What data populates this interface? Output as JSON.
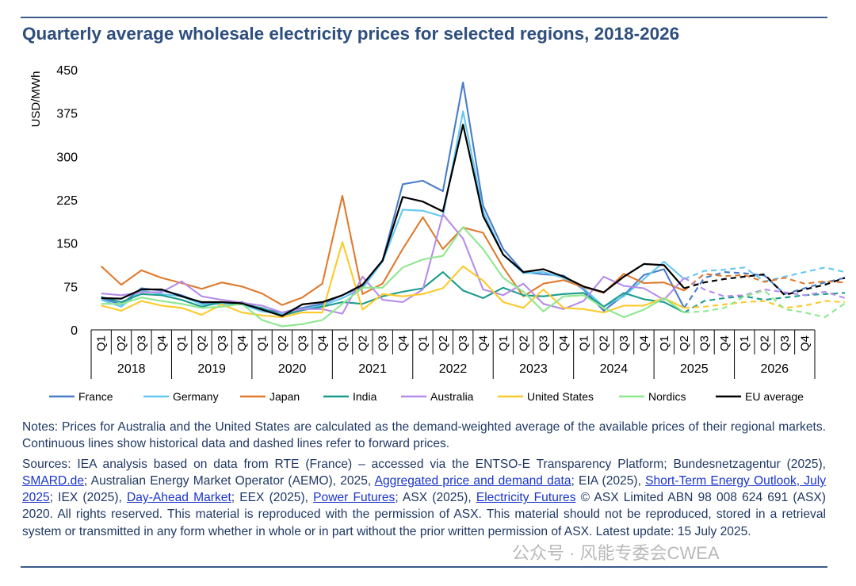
{
  "title": "Quarterly average wholesale electricity prices for selected regions, 2018-2026",
  "chart_data": {
    "type": "line",
    "title": "Quarterly average wholesale electricity prices for selected regions, 2018-2026",
    "ylabel": "USD/MWh",
    "xlabel": "",
    "ylim": [
      0,
      450
    ],
    "yticks": [
      0,
      75,
      150,
      225,
      300,
      375,
      450
    ],
    "quarters": [
      "Q1",
      "Q2",
      "Q3",
      "Q4"
    ],
    "years": [
      "2018",
      "2019",
      "2020",
      "2021",
      "2022",
      "2023",
      "2024",
      "2025",
      "2026"
    ],
    "forward_start_index": 29,
    "series": [
      {
        "name": "France",
        "color": "#4a7cc9",
        "values": [
          55,
          44,
          72,
          68,
          60,
          46,
          46,
          48,
          36,
          30,
          38,
          45,
          60,
          75,
          120,
          252,
          258,
          240,
          428,
          215,
          140,
          100,
          96,
          94,
          70,
          33,
          60,
          95,
          105,
          38,
          90,
          100,
          98,
          94,
          62,
          72,
          82,
          90
        ]
      },
      {
        "name": "Germany",
        "color": "#63c8f2",
        "values": [
          52,
          40,
          68,
          62,
          58,
          44,
          45,
          44,
          32,
          28,
          36,
          42,
          55,
          72,
          118,
          208,
          206,
          196,
          378,
          205,
          130,
          98,
          100,
          90,
          72,
          40,
          58,
          88,
          118,
          88,
          102,
          104,
          108,
          84,
          92,
          100,
          108,
          100
        ]
      },
      {
        "name": "Japan",
        "color": "#e07a2e",
        "values": [
          110,
          78,
          103,
          90,
          81,
          71,
          82,
          75,
          63,
          43,
          56,
          80,
          232,
          62,
          80,
          140,
          195,
          140,
          177,
          168,
          108,
          58,
          80,
          86,
          74,
          64,
          97,
          81,
          82,
          68,
          97,
          93,
          95,
          83,
          90,
          80,
          84,
          82
        ]
      },
      {
        "name": "India",
        "color": "#1a9c8c",
        "values": [
          57,
          48,
          62,
          60,
          52,
          40,
          48,
          44,
          38,
          25,
          34,
          40,
          48,
          45,
          58,
          66,
          72,
          100,
          68,
          55,
          73,
          60,
          58,
          62,
          64,
          40,
          64,
          53,
          48,
          30,
          50,
          55,
          58,
          52,
          56,
          60,
          62,
          64
        ]
      },
      {
        "name": "Australia",
        "color": "#b58de8",
        "values": [
          63,
          60,
          65,
          65,
          84,
          58,
          52,
          47,
          42,
          30,
          36,
          36,
          28,
          92,
          52,
          48,
          70,
          200,
          158,
          70,
          60,
          80,
          45,
          36,
          50,
          92,
          76,
          72,
          52,
          90,
          70,
          58,
          60,
          70,
          65,
          60,
          66,
          55
        ]
      },
      {
        "name": "United States",
        "color": "#fcca2c",
        "values": [
          42,
          33,
          50,
          42,
          38,
          26,
          44,
          30,
          25,
          22,
          30,
          30,
          152,
          35,
          62,
          58,
          62,
          72,
          110,
          85,
          48,
          38,
          70,
          38,
          36,
          30,
          42,
          42,
          55,
          38,
          40,
          44,
          48,
          50,
          38,
          42,
          50,
          48
        ]
      },
      {
        "name": "Nordics",
        "color": "#8ee88f",
        "values": [
          45,
          45,
          56,
          50,
          45,
          38,
          40,
          45,
          17,
          6,
          10,
          17,
          45,
          73,
          73,
          108,
          122,
          128,
          178,
          140,
          90,
          66,
          32,
          58,
          60,
          38,
          22,
          35,
          55,
          30,
          32,
          38,
          58,
          68,
          36,
          30,
          22,
          46
        ]
      },
      {
        "name": "EU average",
        "color": "#000000",
        "values": [
          55,
          54,
          70,
          70,
          58,
          48,
          48,
          46,
          35,
          24,
          44,
          48,
          60,
          78,
          120,
          230,
          222,
          205,
          355,
          197,
          130,
          100,
          105,
          92,
          75,
          65,
          92,
          114,
          112,
          72,
          82,
          88,
          92,
          96,
          60,
          70,
          78,
          90
        ]
      }
    ]
  },
  "notes": "Notes: Prices for Australia and the United States are calculated as the demand-weighted average of the available prices of their regional markets. Continuous lines show historical data and dashed lines refer to forward prices.",
  "sources": {
    "s1": "Sources: IEA analysis based on data from RTE (France) – accessed via the ENTSO-E Transparency Platform; Bundesnetzagentur (2025), ",
    "link1": "SMARD.de",
    "s2": "; Australian Energy Market Operator (AEMO), 2025, ",
    "link2": "Aggregated price and demand data",
    "s3": "; EIA (2025), ",
    "link3": "Short-Term Energy Outlook, July 2025",
    "s4": "; IEX (2025), ",
    "link4": "Day-Ahead Market",
    "s5": "; EEX (2025), ",
    "link5": "Power Futures",
    "s6": "; ASX (2025), ",
    "link6": "Electricity Futures",
    "s7": " © ASX Limited ABN 98 008 624 691 (ASX) 2020. All rights reserved. This material is reproduced with the permission of ASX. This material should not be reproduced, stored in a retrieval system or transmitted in any form whether in whole or in part without the prior written permission of ASX. Latest update: 15 July 2025."
  },
  "watermark": "公众号 · 风能专委会CWEA"
}
